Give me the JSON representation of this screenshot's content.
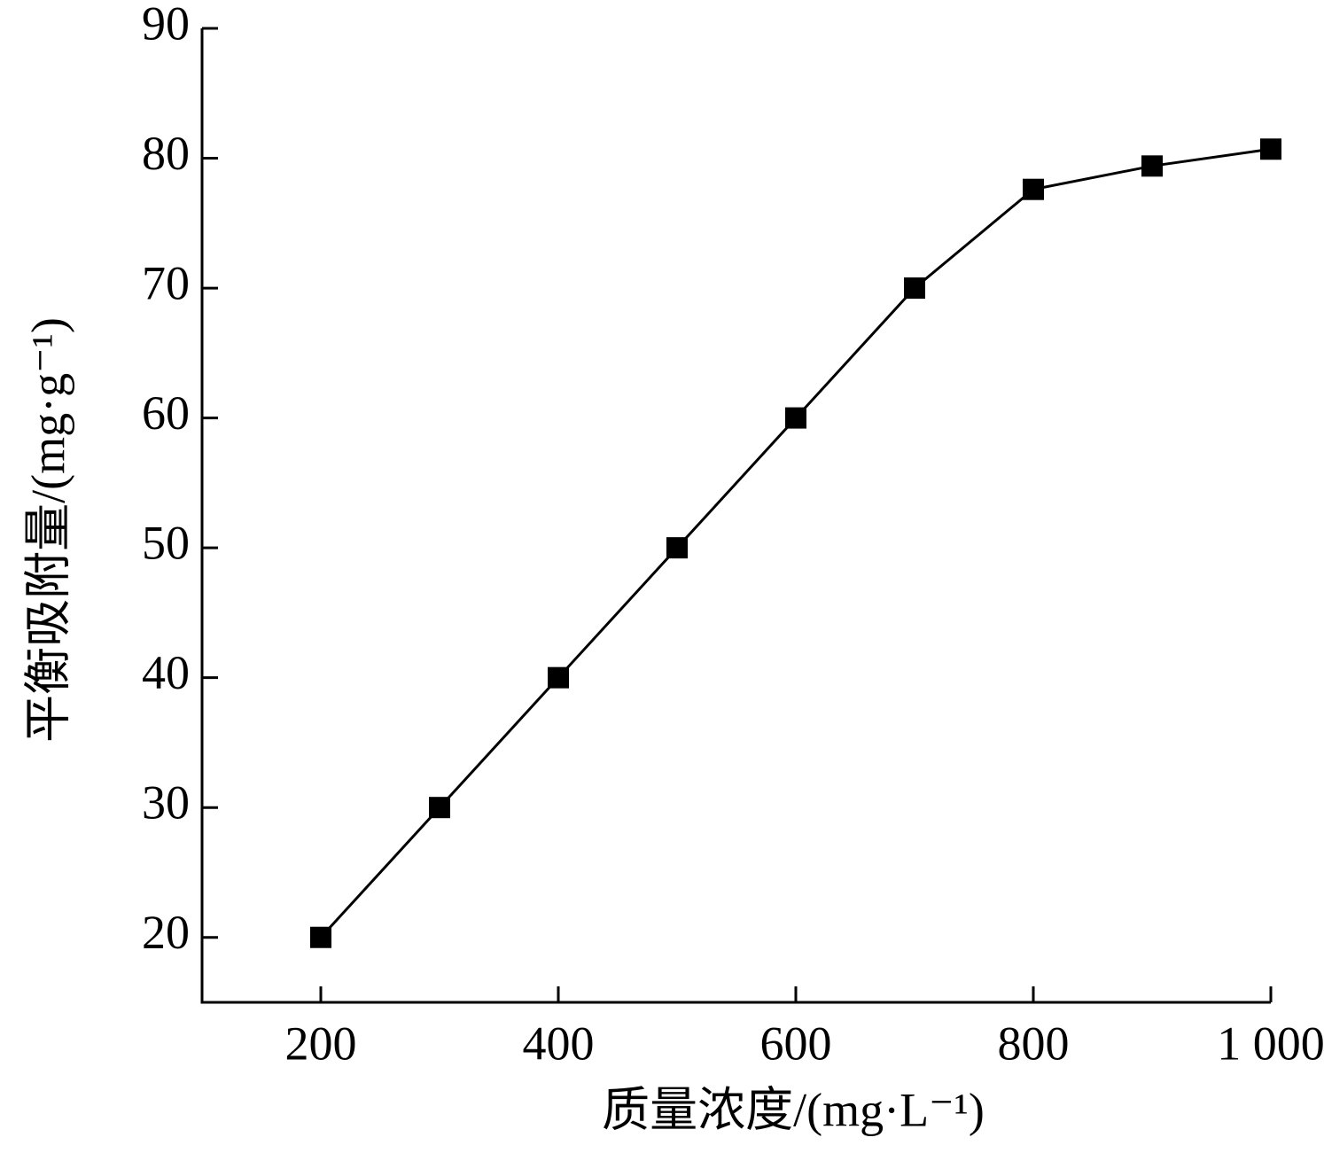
{
  "chart_data": {
    "type": "line",
    "xlabel": "质量浓度/(mg·L⁻¹)",
    "ylabel": "平衡吸附量/(mg·g⁻¹)",
    "x": [
      200,
      300,
      400,
      500,
      600,
      700,
      800,
      900,
      1000
    ],
    "series": [
      {
        "color": "#000000",
        "values": [
          20,
          30,
          40,
          50,
          60,
          70,
          77.6,
          79.4,
          80.7
        ]
      }
    ],
    "xlim": [
      100,
      1000
    ],
    "ylim": [
      15,
      90
    ],
    "xticks": [
      200,
      400,
      600,
      800,
      {
        "value": 1000,
        "label": "1 000"
      }
    ],
    "yticks": [
      20,
      30,
      40,
      50,
      60,
      70,
      80,
      90
    ]
  }
}
